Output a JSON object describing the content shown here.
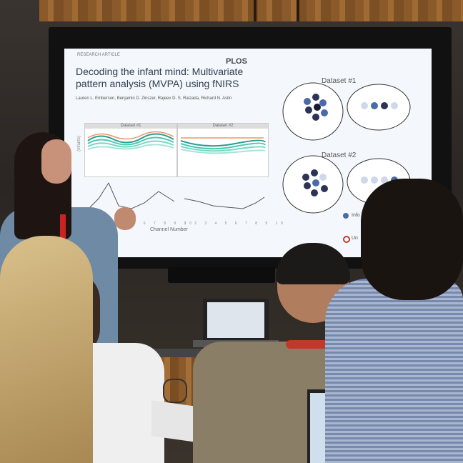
{
  "slide": {
    "tag": "RESEARCH ARTICLE",
    "brand": "PLOS",
    "title": "Decoding the infant mind: Multivariate pattern analysis (MVPA) using fNIRS",
    "authors": "Lauren L. Emberson, Benjamin D. Zinszer, Rajeev D. S. Raizada, Richard N. Aslin",
    "plot1_title": "Dataset #1",
    "plot2_title": "Dataset #2",
    "x_axis_title": "Channel Number",
    "x_ticks_1": "1 2 3 4 5 6 7 8 9 10",
    "x_ticks_2": "1 2 3 4 5 6 7 8 9 10",
    "y_axis_label": "(infants)",
    "dataset1_label": "Dataset #1",
    "dataset2_label": "Dataset #2",
    "legend_1": "Info in m",
    "legend_2": "Un"
  },
  "colors": {
    "screen_bg": "#f4f8fc",
    "dot_dark": "#2d3357",
    "dot_mid": "#4a6aa8",
    "dot_light": "#cfd8ea",
    "legend_red": "#c0392b"
  }
}
